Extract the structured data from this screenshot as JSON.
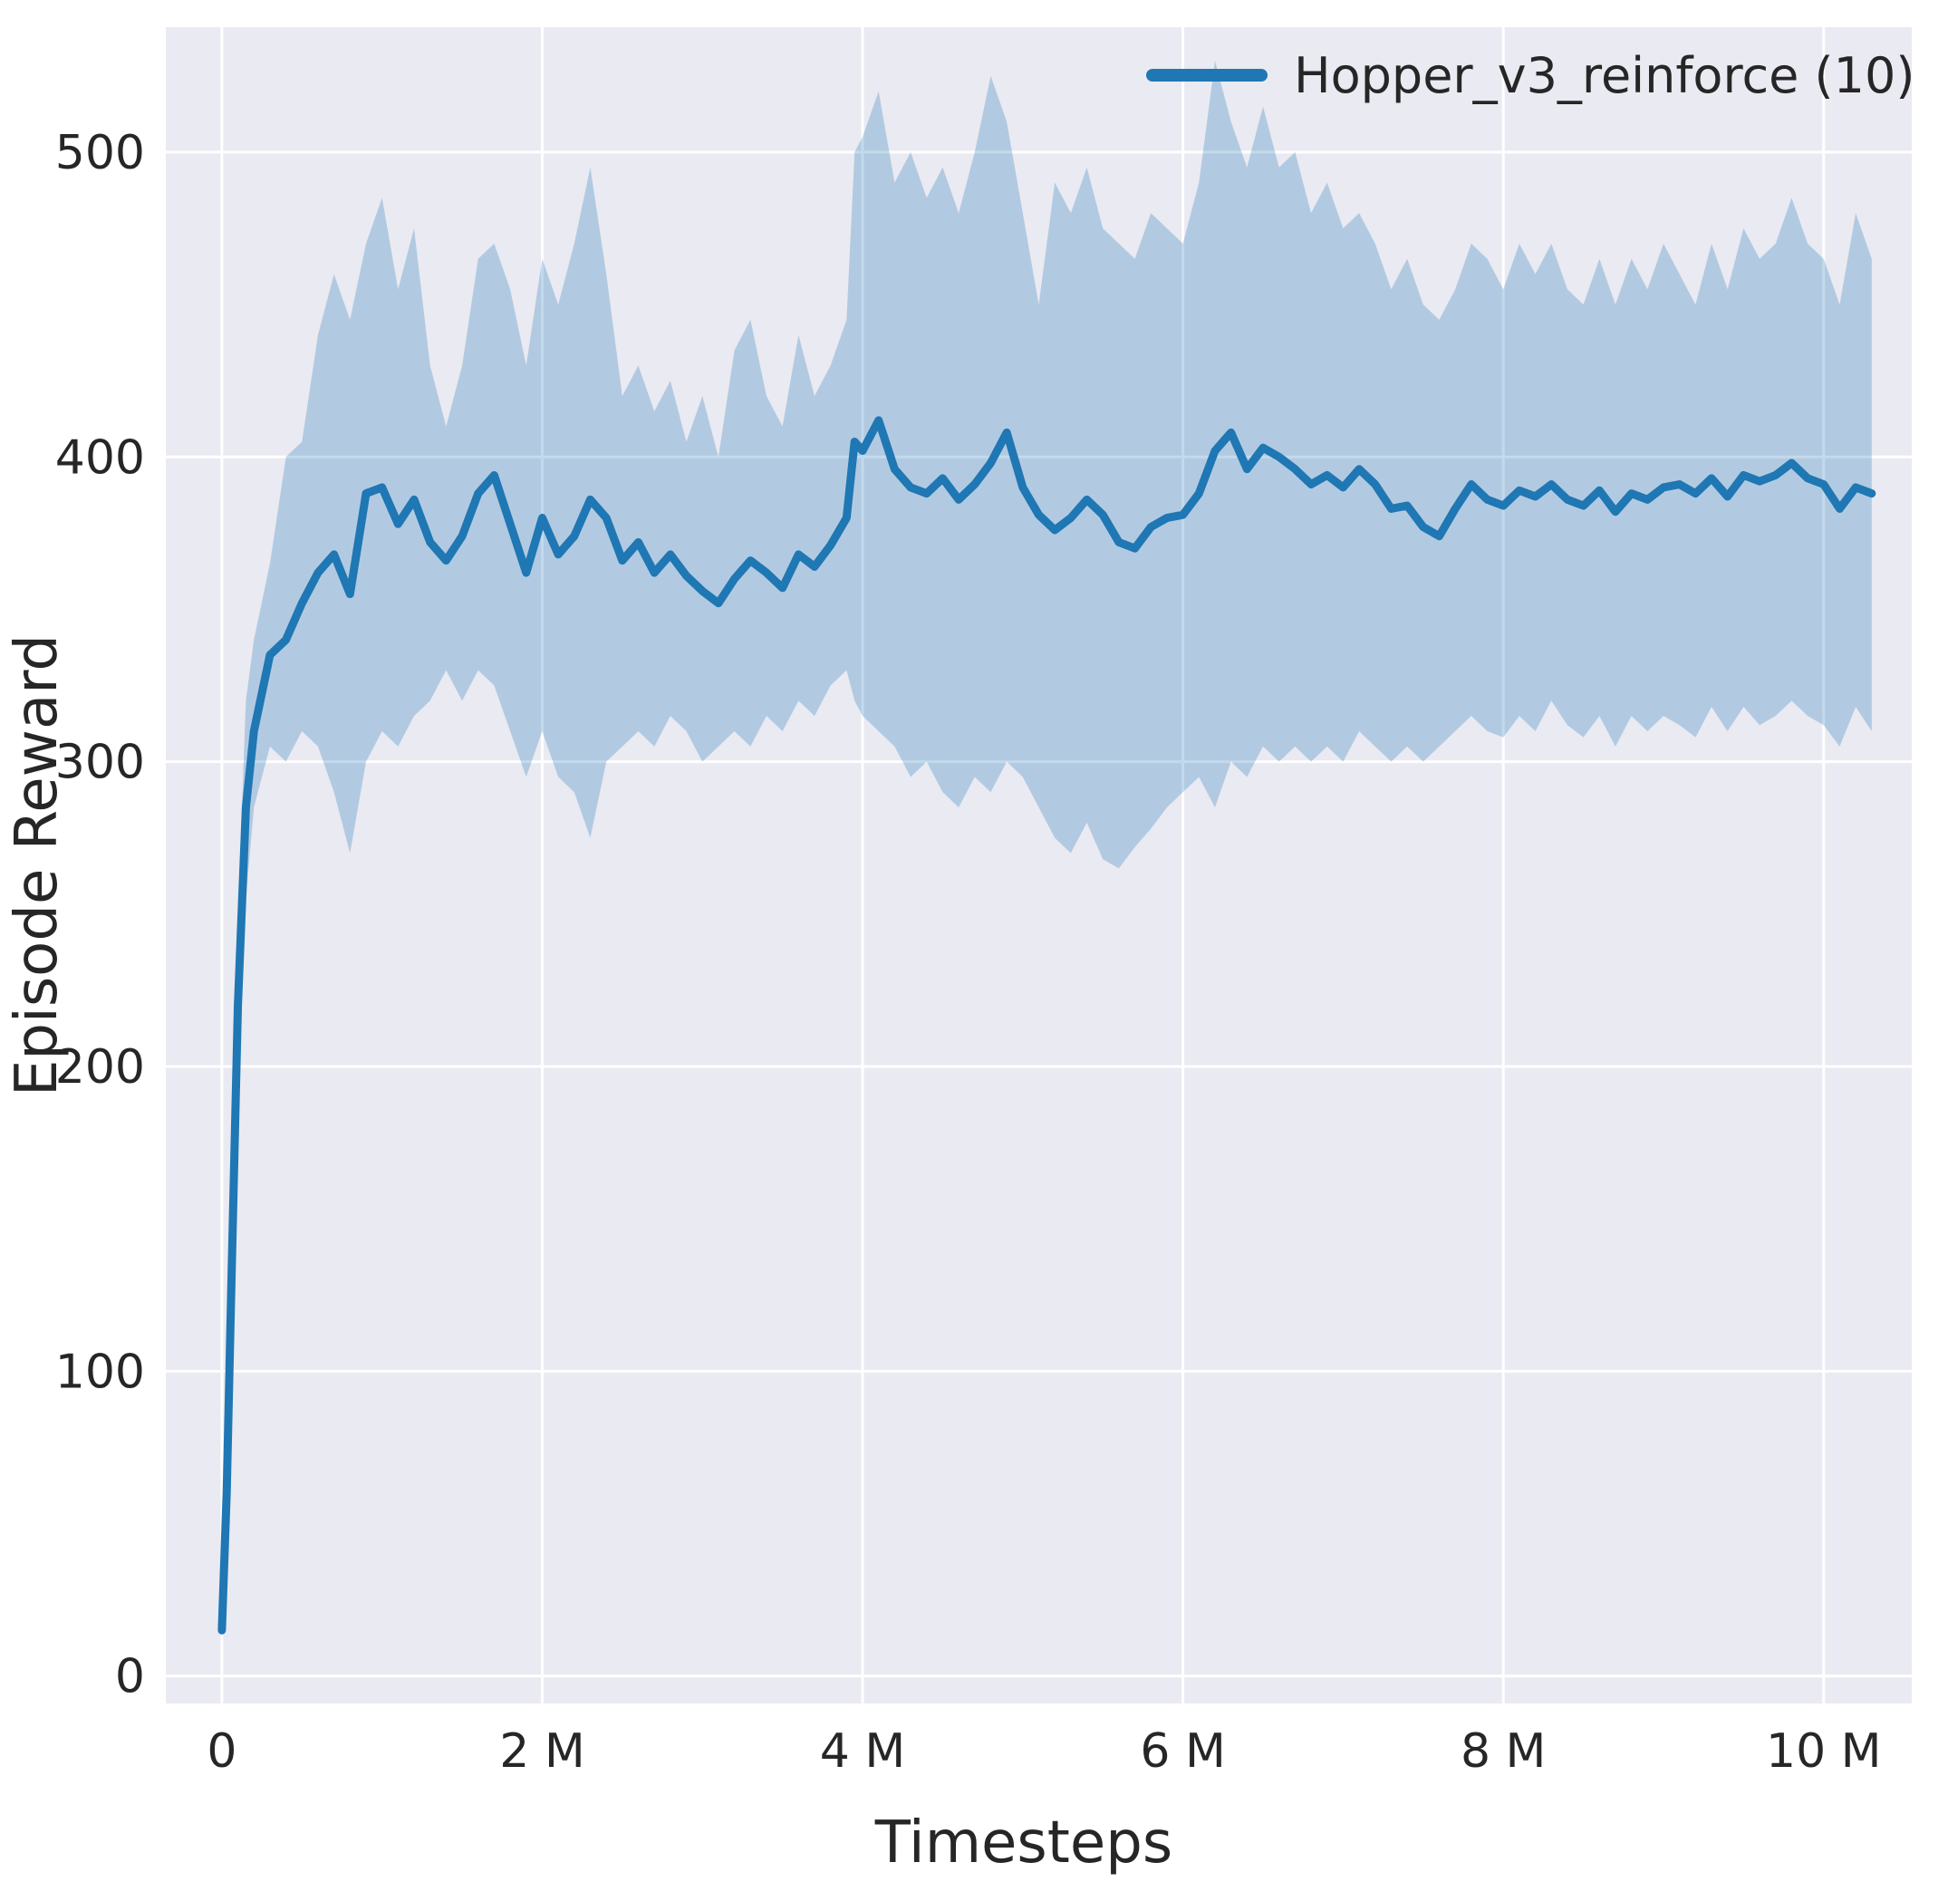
{
  "chart_data": {
    "type": "line",
    "title": "",
    "xlabel": "Timesteps",
    "ylabel": "Episode Reward",
    "xlim": [
      -0.35,
      10.55
    ],
    "ylim": [
      -9,
      541
    ],
    "grid": true,
    "x_ticks": [
      {
        "value": 0,
        "label": "0"
      },
      {
        "value": 2,
        "label": "2 M"
      },
      {
        "value": 4,
        "label": "4 M"
      },
      {
        "value": 6,
        "label": "6 M"
      },
      {
        "value": 8,
        "label": "8 M"
      },
      {
        "value": 10,
        "label": "10 M"
      }
    ],
    "y_ticks": [
      {
        "value": 0,
        "label": "0"
      },
      {
        "value": 100,
        "label": "100"
      },
      {
        "value": 200,
        "label": "200"
      },
      {
        "value": 300,
        "label": "300"
      },
      {
        "value": 400,
        "label": "400"
      },
      {
        "value": 500,
        "label": "500"
      }
    ],
    "legend": {
      "position": "upper right",
      "entries": [
        {
          "label": "Hopper_v3_reinforce (10)",
          "color": "#1f77b4"
        }
      ]
    },
    "colors": {
      "plot_bg": "#eaeaf2",
      "fig_bg": "#ffffff",
      "grid": "#ffffff",
      "tick_text": "#262626",
      "line": "#1f77b4",
      "band": "#1f77b4"
    },
    "x_unit": "millions of timesteps",
    "series": [
      {
        "name": "Hopper_v3_reinforce (10)",
        "color": "#1f77b4",
        "band_alpha": 0.27,
        "x": [
          0,
          0.03,
          0.06,
          0.1,
          0.15,
          0.2,
          0.3,
          0.4,
          0.5,
          0.6,
          0.7,
          0.8,
          0.9,
          1.0,
          1.1,
          1.2,
          1.3,
          1.4,
          1.5,
          1.6,
          1.7,
          1.8,
          1.9,
          2.0,
          2.1,
          2.2,
          2.3,
          2.4,
          2.5,
          2.6,
          2.7,
          2.8,
          2.9,
          3.0,
          3.1,
          3.2,
          3.3,
          3.4,
          3.5,
          3.6,
          3.7,
          3.8,
          3.9,
          3.95,
          4.0,
          4.1,
          4.2,
          4.3,
          4.4,
          4.5,
          4.6,
          4.7,
          4.8,
          4.9,
          5.0,
          5.1,
          5.2,
          5.3,
          5.4,
          5.5,
          5.6,
          5.7,
          5.8,
          5.9,
          6.0,
          6.1,
          6.2,
          6.3,
          6.4,
          6.5,
          6.6,
          6.7,
          6.8,
          6.9,
          7.0,
          7.1,
          7.2,
          7.3,
          7.4,
          7.5,
          7.6,
          7.7,
          7.8,
          7.9,
          8.0,
          8.1,
          8.2,
          8.3,
          8.4,
          8.5,
          8.6,
          8.7,
          8.8,
          8.9,
          9.0,
          9.1,
          9.2,
          9.3,
          9.4,
          9.5,
          9.6,
          9.7,
          9.8,
          9.9,
          10.0,
          10.1,
          10.2,
          10.3
        ],
        "mean": [
          15,
          60,
          130,
          220,
          285,
          310,
          335,
          340,
          352,
          362,
          368,
          355,
          388,
          390,
          378,
          386,
          372,
          366,
          374,
          388,
          394,
          378,
          362,
          380,
          368,
          374,
          386,
          380,
          366,
          372,
          362,
          368,
          361,
          356,
          352,
          360,
          366,
          362,
          357,
          368,
          364,
          371,
          380,
          405,
          402,
          412,
          396,
          390,
          388,
          393,
          386,
          391,
          398,
          408,
          390,
          381,
          376,
          380,
          386,
          381,
          372,
          370,
          377,
          380,
          381,
          388,
          402,
          408,
          396,
          403,
          400,
          396,
          391,
          394,
          390,
          396,
          391,
          383,
          384,
          377,
          374,
          383,
          391,
          386,
          384,
          389,
          387,
          391,
          386,
          384,
          389,
          382,
          388,
          386,
          390,
          391,
          388,
          393,
          387,
          394,
          392,
          394,
          398,
          393,
          391,
          383,
          390,
          388
        ],
        "upper": [
          18,
          70,
          150,
          250,
          320,
          340,
          365,
          400,
          405,
          440,
          460,
          445,
          470,
          485,
          455,
          475,
          430,
          410,
          430,
          465,
          470,
          455,
          430,
          465,
          450,
          470,
          495,
          460,
          420,
          430,
          415,
          425,
          405,
          420,
          400,
          435,
          445,
          420,
          410,
          440,
          420,
          430,
          445,
          500,
          505,
          520,
          490,
          500,
          485,
          495,
          480,
          500,
          525,
          510,
          480,
          450,
          490,
          480,
          495,
          475,
          470,
          465,
          480,
          475,
          470,
          490,
          530,
          510,
          495,
          515,
          495,
          500,
          480,
          490,
          475,
          480,
          470,
          455,
          465,
          450,
          445,
          455,
          470,
          465,
          455,
          470,
          460,
          470,
          455,
          450,
          465,
          450,
          465,
          455,
          470,
          460,
          450,
          470,
          455,
          475,
          465,
          470,
          485,
          470,
          465,
          450,
          480,
          465
        ],
        "lower": [
          12,
          50,
          110,
          190,
          255,
          285,
          305,
          300,
          310,
          305,
          290,
          270,
          300,
          310,
          305,
          315,
          320,
          330,
          320,
          330,
          325,
          310,
          295,
          310,
          295,
          290,
          275,
          300,
          305,
          310,
          305,
          315,
          310,
          300,
          305,
          310,
          305,
          315,
          310,
          320,
          315,
          325,
          330,
          320,
          315,
          310,
          305,
          295,
          300,
          290,
          285,
          295,
          290,
          300,
          295,
          285,
          275,
          270,
          280,
          268,
          265,
          272,
          278,
          285,
          290,
          295,
          285,
          300,
          295,
          305,
          300,
          305,
          300,
          305,
          300,
          310,
          305,
          300,
          305,
          300,
          305,
          310,
          315,
          310,
          308,
          315,
          310,
          320,
          312,
          308,
          315,
          305,
          315,
          310,
          315,
          312,
          308,
          318,
          310,
          318,
          312,
          315,
          320,
          315,
          312,
          305,
          318,
          310
        ]
      }
    ]
  }
}
